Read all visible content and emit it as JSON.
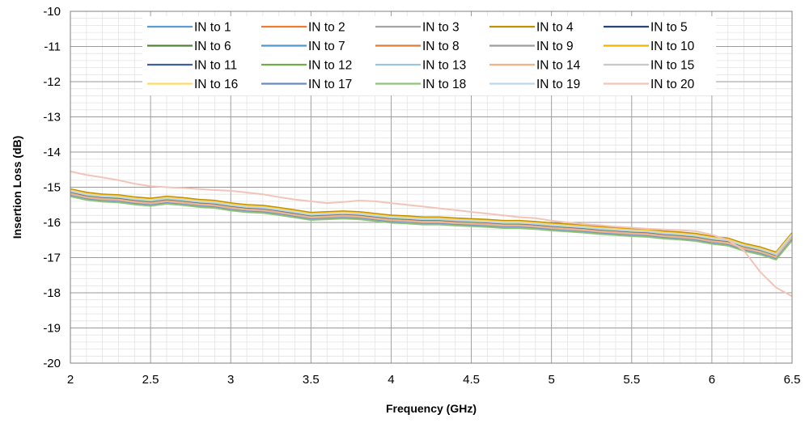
{
  "chart_data": {
    "type": "line",
    "title": "",
    "xlabel": "Frequency (GHz)",
    "ylabel": "Insertion Loss (dB)",
    "xlim": [
      2,
      6.5
    ],
    "ylim": [
      -20,
      -10
    ],
    "xticks": [
      2,
      2.5,
      3,
      3.5,
      4,
      4.5,
      5,
      5.5,
      6,
      6.5
    ],
    "xtick_labels": [
      "2",
      "2.5",
      "3",
      "3.5",
      "4",
      "4.5",
      "5",
      "5.5",
      "6",
      "6.5"
    ],
    "yticks": [
      -10,
      -11,
      -12,
      -13,
      -14,
      -15,
      -16,
      -17,
      -18,
      -19,
      -20
    ],
    "ytick_labels": [
      "-10",
      "-11",
      "-12",
      "-13",
      "-14",
      "-15",
      "-16",
      "-17",
      "-18",
      "-19",
      "-20"
    ],
    "grid": true,
    "minor_grid": true,
    "legend_position": "top-inside",
    "x": [
      2.0,
      2.1,
      2.2,
      2.3,
      2.4,
      2.5,
      2.6,
      2.7,
      2.8,
      2.9,
      3.0,
      3.1,
      3.2,
      3.3,
      3.4,
      3.5,
      3.6,
      3.7,
      3.8,
      3.9,
      4.0,
      4.1,
      4.2,
      4.3,
      4.4,
      4.5,
      4.6,
      4.7,
      4.8,
      4.9,
      5.0,
      5.1,
      5.2,
      5.3,
      5.4,
      5.5,
      5.6,
      5.7,
      5.8,
      5.9,
      6.0,
      6.1,
      6.2,
      6.3,
      6.4,
      6.5
    ],
    "series": [
      {
        "name": "IN to 1",
        "color": "#5B9BD5",
        "values": [
          -15.15,
          -15.25,
          -15.3,
          -15.32,
          -15.38,
          -15.42,
          -15.36,
          -15.4,
          -15.45,
          -15.48,
          -15.55,
          -15.6,
          -15.62,
          -15.68,
          -15.75,
          -15.82,
          -15.8,
          -15.78,
          -15.8,
          -15.85,
          -15.9,
          -15.92,
          -15.95,
          -15.95,
          -15.98,
          -16.0,
          -16.02,
          -16.05,
          -16.05,
          -16.08,
          -16.12,
          -16.15,
          -16.18,
          -16.22,
          -16.25,
          -16.28,
          -16.3,
          -16.35,
          -16.38,
          -16.42,
          -16.5,
          -16.55,
          -16.7,
          -16.8,
          -16.95,
          -16.4
        ]
      },
      {
        "name": "IN to 2",
        "color": "#ED7D31",
        "values": [
          -15.17,
          -15.27,
          -15.32,
          -15.34,
          -15.4,
          -15.44,
          -15.38,
          -15.42,
          -15.47,
          -15.5,
          -15.57,
          -15.62,
          -15.64,
          -15.7,
          -15.77,
          -15.84,
          -15.82,
          -15.8,
          -15.82,
          -15.87,
          -15.95,
          -15.94,
          -15.97,
          -15.97,
          -16.0,
          -16.02,
          -16.04,
          -16.07,
          -16.07,
          -16.1,
          -16.14,
          -16.17,
          -16.2,
          -16.24,
          -16.27,
          -16.3,
          -16.32,
          -16.37,
          -16.4,
          -16.44,
          -16.52,
          -16.57,
          -16.72,
          -16.82,
          -16.97,
          -16.42
        ]
      },
      {
        "name": "IN to 3",
        "color": "#A5A5A5",
        "values": [
          -15.19,
          -15.29,
          -15.34,
          -15.36,
          -15.42,
          -15.46,
          -15.4,
          -15.44,
          -15.49,
          -15.52,
          -15.59,
          -15.64,
          -15.66,
          -15.72,
          -15.79,
          -15.86,
          -15.84,
          -15.82,
          -15.84,
          -15.89,
          -15.94,
          -15.96,
          -15.99,
          -15.99,
          -16.02,
          -16.04,
          -16.06,
          -16.09,
          -16.09,
          -16.12,
          -16.16,
          -16.19,
          -16.22,
          -16.26,
          -16.29,
          -16.32,
          -16.34,
          -16.39,
          -16.42,
          -16.46,
          -16.54,
          -16.59,
          -16.74,
          -16.84,
          -16.99,
          -16.44
        ]
      },
      {
        "name": "IN to 4",
        "color": "#C09000",
        "values": [
          -15.05,
          -15.15,
          -15.2,
          -15.22,
          -15.28,
          -15.32,
          -15.26,
          -15.3,
          -15.35,
          -15.38,
          -15.45,
          -15.5,
          -15.52,
          -15.58,
          -15.65,
          -15.72,
          -15.7,
          -15.68,
          -15.7,
          -15.75,
          -15.8,
          -15.82,
          -15.85,
          -15.85,
          -15.88,
          -15.9,
          -15.92,
          -15.95,
          -15.95,
          -15.98,
          -16.02,
          -16.05,
          -16.08,
          -16.12,
          -16.15,
          -16.18,
          -16.2,
          -16.25,
          -16.28,
          -16.32,
          -16.4,
          -16.45,
          -16.6,
          -16.7,
          -16.85,
          -16.3
        ]
      },
      {
        "name": "IN to 5",
        "color": "#264478",
        "values": [
          -15.14,
          -15.24,
          -15.29,
          -15.31,
          -15.37,
          -15.41,
          -15.35,
          -15.39,
          -15.44,
          -15.47,
          -15.54,
          -15.59,
          -15.61,
          -15.67,
          -15.74,
          -15.81,
          -15.79,
          -15.77,
          -15.79,
          -15.84,
          -15.89,
          -15.91,
          -15.94,
          -15.94,
          -15.97,
          -15.99,
          -16.01,
          -16.04,
          -16.04,
          -16.07,
          -16.11,
          -16.14,
          -16.17,
          -16.21,
          -16.24,
          -16.27,
          -16.29,
          -16.34,
          -16.37,
          -16.41,
          -16.49,
          -16.54,
          -16.69,
          -16.79,
          -16.94,
          -16.39
        ]
      },
      {
        "name": "IN to 6",
        "color": "#548235",
        "values": [
          -15.1,
          -15.2,
          -15.25,
          -15.27,
          -15.33,
          -15.37,
          -15.31,
          -15.35,
          -15.4,
          -15.43,
          -15.5,
          -15.55,
          -15.57,
          -15.63,
          -15.7,
          -15.77,
          -15.75,
          -15.73,
          -15.75,
          -15.8,
          -15.85,
          -15.87,
          -15.9,
          -15.9,
          -15.93,
          -15.95,
          -15.97,
          -16.0,
          -16.0,
          -16.03,
          -16.07,
          -16.1,
          -16.13,
          -16.17,
          -16.2,
          -16.23,
          -16.25,
          -16.3,
          -16.33,
          -16.37,
          -16.45,
          -16.5,
          -16.65,
          -16.75,
          -16.9,
          -16.35
        ]
      },
      {
        "name": "IN to 7",
        "color": "#4A9ACE",
        "values": [
          -15.21,
          -15.31,
          -15.36,
          -15.38,
          -15.44,
          -15.48,
          -15.42,
          -15.46,
          -15.51,
          -15.54,
          -15.61,
          -15.66,
          -15.68,
          -15.74,
          -15.81,
          -15.88,
          -15.86,
          -15.84,
          -15.86,
          -15.91,
          -15.96,
          -15.98,
          -16.01,
          -16.01,
          -16.04,
          -16.06,
          -16.08,
          -16.11,
          -16.11,
          -16.14,
          -16.18,
          -16.21,
          -16.24,
          -16.28,
          -16.31,
          -16.34,
          -16.36,
          -16.41,
          -16.44,
          -16.48,
          -16.56,
          -16.61,
          -16.76,
          -16.86,
          -17.01,
          -16.46
        ]
      },
      {
        "name": "IN to 8",
        "color": "#E07B39",
        "values": [
          -15.16,
          -15.26,
          -15.31,
          -15.33,
          -15.39,
          -15.43,
          -15.37,
          -15.41,
          -15.46,
          -15.49,
          -15.56,
          -15.61,
          -15.63,
          -15.69,
          -15.76,
          -15.83,
          -15.81,
          -15.79,
          -15.81,
          -15.86,
          -15.91,
          -15.93,
          -15.96,
          -15.96,
          -15.99,
          -16.01,
          -16.03,
          -16.06,
          -16.06,
          -16.09,
          -16.13,
          -16.16,
          -16.19,
          -16.23,
          -16.26,
          -16.29,
          -16.31,
          -16.36,
          -16.39,
          -16.43,
          -16.51,
          -16.56,
          -16.71,
          -16.81,
          -16.96,
          -16.41
        ]
      },
      {
        "name": "IN to 9",
        "color": "#9E9E9E",
        "values": [
          -15.2,
          -15.3,
          -15.35,
          -15.37,
          -15.43,
          -15.47,
          -15.41,
          -15.45,
          -15.5,
          -15.53,
          -15.6,
          -15.65,
          -15.67,
          -15.73,
          -15.8,
          -15.87,
          -15.85,
          -15.83,
          -15.85,
          -15.9,
          -15.95,
          -15.97,
          -16.0,
          -16.0,
          -16.03,
          -16.05,
          -16.07,
          -16.1,
          -16.1,
          -16.13,
          -16.17,
          -16.2,
          -16.23,
          -16.27,
          -16.3,
          -16.33,
          -16.35,
          -16.4,
          -16.43,
          -16.47,
          -16.55,
          -16.6,
          -16.75,
          -16.85,
          -17.0,
          -16.45
        ]
      },
      {
        "name": "IN to 10",
        "color": "#F2B400",
        "values": [
          -15.08,
          -15.18,
          -15.23,
          -15.25,
          -15.31,
          -15.35,
          -15.29,
          -15.33,
          -15.38,
          -15.41,
          -15.48,
          -15.53,
          -15.55,
          -15.61,
          -15.68,
          -15.75,
          -15.73,
          -15.71,
          -15.73,
          -15.78,
          -15.83,
          -15.85,
          -15.88,
          -15.88,
          -15.91,
          -15.93,
          -15.95,
          -15.98,
          -15.98,
          -16.01,
          -16.05,
          -16.08,
          -16.11,
          -16.15,
          -16.18,
          -16.21,
          -16.23,
          -16.28,
          -16.31,
          -16.35,
          -16.43,
          -16.48,
          -16.63,
          -16.73,
          -16.88,
          -16.33
        ]
      },
      {
        "name": "IN to 11",
        "color": "#3D5FA8",
        "values": [
          -15.13,
          -15.23,
          -15.28,
          -15.3,
          -15.36,
          -15.4,
          -15.34,
          -15.38,
          -15.43,
          -15.46,
          -15.53,
          -15.58,
          -15.6,
          -15.66,
          -15.73,
          -15.8,
          -15.78,
          -15.76,
          -15.78,
          -15.83,
          -15.88,
          -15.9,
          -15.93,
          -15.93,
          -15.96,
          -15.98,
          -16.0,
          -16.03,
          -16.03,
          -16.06,
          -16.1,
          -16.13,
          -16.16,
          -16.2,
          -16.23,
          -16.26,
          -16.28,
          -16.33,
          -16.36,
          -16.4,
          -16.48,
          -16.53,
          -16.68,
          -16.78,
          -16.93,
          -16.38
        ]
      },
      {
        "name": "IN to 12",
        "color": "#70AD47",
        "values": [
          -15.12,
          -15.22,
          -15.27,
          -15.29,
          -15.35,
          -15.39,
          -15.33,
          -15.37,
          -15.42,
          -15.45,
          -15.52,
          -15.57,
          -15.59,
          -15.65,
          -15.72,
          -15.79,
          -15.77,
          -15.75,
          -15.77,
          -15.82,
          -15.87,
          -15.89,
          -15.92,
          -15.92,
          -15.95,
          -15.97,
          -15.99,
          -16.02,
          -16.02,
          -16.05,
          -16.09,
          -16.12,
          -16.15,
          -16.19,
          -16.22,
          -16.25,
          -16.27,
          -16.32,
          -16.35,
          -16.39,
          -16.47,
          -16.52,
          -16.67,
          -16.77,
          -16.92,
          -16.37
        ]
      },
      {
        "name": "IN to 13",
        "color": "#9DC3E6",
        "values": [
          -15.22,
          -15.32,
          -15.37,
          -15.39,
          -15.45,
          -15.49,
          -15.43,
          -15.47,
          -15.52,
          -15.55,
          -15.62,
          -15.67,
          -15.69,
          -15.75,
          -15.82,
          -15.89,
          -15.87,
          -15.85,
          -15.87,
          -15.92,
          -15.97,
          -15.99,
          -16.02,
          -16.02,
          -16.05,
          -16.07,
          -16.09,
          -16.12,
          -16.12,
          -16.15,
          -16.19,
          -16.22,
          -16.25,
          -16.29,
          -16.32,
          -16.35,
          -16.37,
          -16.42,
          -16.45,
          -16.49,
          -16.57,
          -16.62,
          -16.77,
          -16.87,
          -17.02,
          -16.47
        ]
      },
      {
        "name": "IN to 14",
        "color": "#F4B183",
        "values": [
          -15.18,
          -15.28,
          -15.33,
          -15.35,
          -15.41,
          -15.45,
          -15.39,
          -15.43,
          -15.48,
          -15.51,
          -15.58,
          -15.63,
          -15.65,
          -15.71,
          -15.78,
          -15.85,
          -15.83,
          -15.81,
          -15.83,
          -15.88,
          -15.93,
          -15.95,
          -15.98,
          -15.98,
          -16.01,
          -16.03,
          -16.05,
          -16.08,
          -16.08,
          -16.11,
          -16.15,
          -16.18,
          -16.21,
          -16.25,
          -16.28,
          -16.31,
          -16.33,
          -16.38,
          -16.41,
          -16.45,
          -16.53,
          -16.58,
          -16.73,
          -16.83,
          -16.98,
          -16.43
        ]
      },
      {
        "name": "IN to 15",
        "color": "#C9C9C9",
        "values": [
          -15.23,
          -15.33,
          -15.38,
          -15.4,
          -15.46,
          -15.5,
          -15.44,
          -15.48,
          -15.53,
          -15.56,
          -15.63,
          -15.68,
          -15.7,
          -15.76,
          -15.83,
          -15.9,
          -15.88,
          -15.86,
          -15.88,
          -15.93,
          -15.98,
          -16.0,
          -16.03,
          -16.03,
          -16.06,
          -16.08,
          -16.1,
          -16.13,
          -16.13,
          -16.16,
          -16.2,
          -16.23,
          -16.26,
          -16.3,
          -16.33,
          -16.36,
          -16.38,
          -16.43,
          -16.46,
          -16.5,
          -16.58,
          -16.63,
          -16.78,
          -16.88,
          -17.03,
          -16.48
        ]
      },
      {
        "name": "IN to 16",
        "color": "#FFD966",
        "values": [
          -15.09,
          -15.19,
          -15.24,
          -15.26,
          -15.32,
          -15.36,
          -15.3,
          -15.34,
          -15.39,
          -15.42,
          -15.49,
          -15.54,
          -15.56,
          -15.62,
          -15.69,
          -15.76,
          -15.74,
          -15.72,
          -15.74,
          -15.79,
          -15.84,
          -15.86,
          -15.89,
          -15.89,
          -15.92,
          -15.94,
          -15.96,
          -15.99,
          -15.99,
          -16.02,
          -16.06,
          -16.09,
          -16.12,
          -16.16,
          -16.19,
          -16.22,
          -16.24,
          -16.29,
          -16.32,
          -16.36,
          -16.44,
          -16.49,
          -16.64,
          -16.74,
          -16.89,
          -16.34
        ]
      },
      {
        "name": "IN to 17",
        "color": "#6F87C4",
        "values": [
          -15.24,
          -15.34,
          -15.39,
          -15.41,
          -15.47,
          -15.51,
          -15.45,
          -15.49,
          -15.54,
          -15.57,
          -15.64,
          -15.69,
          -15.71,
          -15.77,
          -15.84,
          -15.91,
          -15.89,
          -15.87,
          -15.89,
          -15.94,
          -15.99,
          -16.01,
          -16.04,
          -16.04,
          -16.07,
          -16.09,
          -16.11,
          -16.14,
          -16.14,
          -16.17,
          -16.21,
          -16.24,
          -16.27,
          -16.31,
          -16.34,
          -16.37,
          -16.39,
          -16.44,
          -16.47,
          -16.51,
          -16.59,
          -16.64,
          -16.79,
          -16.89,
          -17.04,
          -16.49
        ]
      },
      {
        "name": "IN to 18",
        "color": "#8FC37A",
        "values": [
          -15.26,
          -15.36,
          -15.41,
          -15.43,
          -15.49,
          -15.53,
          -15.47,
          -15.51,
          -15.56,
          -15.59,
          -15.66,
          -15.71,
          -15.73,
          -15.79,
          -15.86,
          -15.93,
          -15.91,
          -15.89,
          -15.91,
          -15.96,
          -16.01,
          -16.03,
          -16.06,
          -16.06,
          -16.09,
          -16.11,
          -16.13,
          -16.16,
          -16.16,
          -16.19,
          -16.23,
          -16.26,
          -16.29,
          -16.33,
          -16.36,
          -16.39,
          -16.41,
          -16.46,
          -16.49,
          -16.53,
          -16.61,
          -16.66,
          -16.81,
          -16.91,
          -17.06,
          -16.51
        ]
      },
      {
        "name": "IN to 19",
        "color": "#BDD7EE",
        "values": [
          -15.11,
          -15.21,
          -15.26,
          -15.28,
          -15.34,
          -15.38,
          -15.32,
          -15.36,
          -15.41,
          -15.44,
          -15.51,
          -15.56,
          -15.58,
          -15.64,
          -15.71,
          -15.78,
          -15.76,
          -15.74,
          -15.76,
          -15.81,
          -15.86,
          -15.88,
          -15.91,
          -15.91,
          -15.94,
          -15.96,
          -15.98,
          -16.01,
          -16.01,
          -16.04,
          -16.08,
          -16.11,
          -16.14,
          -16.18,
          -16.21,
          -16.24,
          -16.26,
          -16.31,
          -16.34,
          -16.38,
          -16.46,
          -16.51,
          -16.66,
          -16.76,
          -16.91,
          -16.36
        ]
      },
      {
        "name": "IN to 20",
        "color": "#F2C4B8",
        "values": [
          -14.55,
          -14.65,
          -14.72,
          -14.8,
          -14.9,
          -14.97,
          -15.0,
          -15.02,
          -15.05,
          -15.08,
          -15.1,
          -15.15,
          -15.2,
          -15.28,
          -15.35,
          -15.4,
          -15.45,
          -15.42,
          -15.38,
          -15.4,
          -15.45,
          -15.5,
          -15.55,
          -15.6,
          -15.65,
          -15.7,
          -15.75,
          -15.8,
          -15.85,
          -15.88,
          -15.95,
          -16.0,
          -16.05,
          -16.08,
          -16.12,
          -16.15,
          -16.18,
          -16.2,
          -16.22,
          -16.25,
          -16.35,
          -16.5,
          -16.8,
          -17.4,
          -17.85,
          -18.1
        ]
      }
    ]
  }
}
